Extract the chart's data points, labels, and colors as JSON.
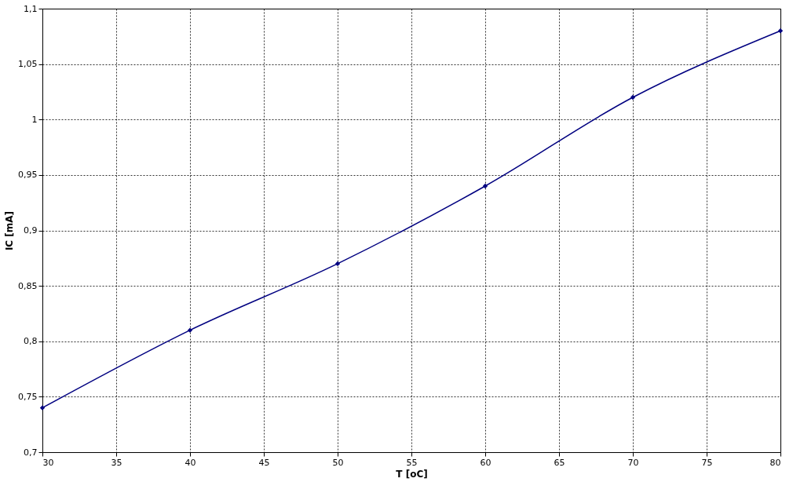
{
  "chart_data": {
    "type": "line",
    "xlabel": "T [oC]",
    "ylabel": "IC [mA]",
    "x": [
      30,
      40,
      50,
      60,
      70,
      80
    ],
    "series": [
      {
        "color": "#000080",
        "values": [
          0.74,
          0.81,
          0.87,
          0.94,
          1.02,
          1.08
        ]
      }
    ],
    "xlim": [
      30,
      80
    ],
    "xticks": [
      30,
      35,
      40,
      45,
      50,
      55,
      60,
      65,
      70,
      75,
      80
    ],
    "ylim": [
      0.7,
      1.1
    ],
    "yticks": [
      {
        "value": 0.7,
        "label": "0,7"
      },
      {
        "value": 0.75,
        "label": "0,75"
      },
      {
        "value": 0.8,
        "label": "0,8"
      },
      {
        "value": 0.85,
        "label": "0,85"
      },
      {
        "value": 0.9,
        "label": "0,9"
      },
      {
        "value": 0.95,
        "label": "0,95"
      },
      1,
      {
        "value": 1.05,
        "label": "1,05"
      },
      {
        "value": 1.1,
        "label": "1,1"
      }
    ],
    "grid": true,
    "line_style": "solid",
    "marker": "diamond"
  }
}
